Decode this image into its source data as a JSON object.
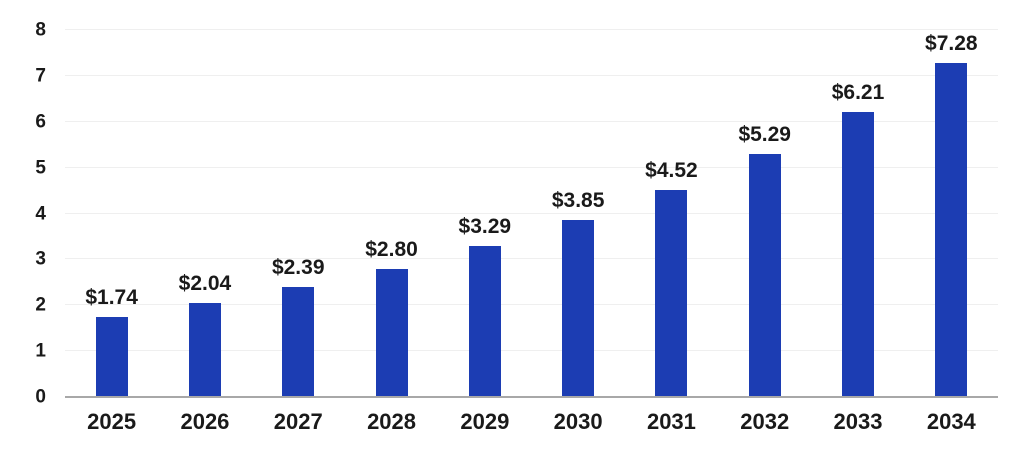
{
  "chart_data": {
    "type": "bar",
    "title": "",
    "xlabel": "",
    "ylabel": "",
    "categories": [
      "2025",
      "2026",
      "2027",
      "2028",
      "2029",
      "2030",
      "2031",
      "2032",
      "2033",
      "2034"
    ],
    "values": [
      1.74,
      2.04,
      2.39,
      2.8,
      3.29,
      3.85,
      4.52,
      5.29,
      6.21,
      7.28
    ],
    "value_labels": [
      "$1.74",
      "$2.04",
      "$2.39",
      "$2.80",
      "$3.29",
      "$3.85",
      "$4.52",
      "$5.29",
      "$6.21",
      "$7.28"
    ],
    "ylim": [
      0,
      8
    ],
    "y_ticks": [
      0,
      1,
      2,
      3,
      4,
      5,
      6,
      7,
      8
    ],
    "grid": true,
    "legend": "none",
    "colors": {
      "bar": "#1c3db3",
      "text": "#1a1a1a",
      "gridline": "#efefef",
      "baseline": "#a8a8a8",
      "background": "#ffffff"
    }
  }
}
